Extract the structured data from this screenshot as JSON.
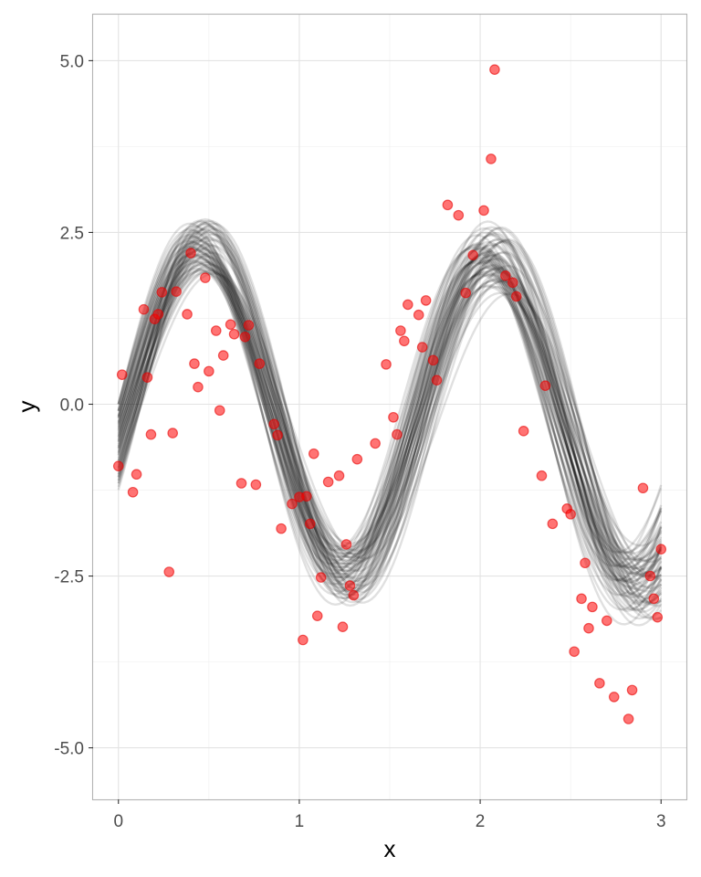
{
  "chart_data": {
    "type": "scatter",
    "title": "",
    "xlabel": "x",
    "ylabel": "y",
    "xlim": [
      -0.14,
      3.14
    ],
    "ylim": [
      -5.75,
      5.67
    ],
    "x_ticks": [
      0,
      1,
      2,
      3
    ],
    "x_tick_labels": [
      "0",
      "1",
      "2",
      "3"
    ],
    "y_ticks": [
      -5.0,
      -2.5,
      0.0,
      2.5,
      5.0
    ],
    "y_tick_labels": [
      "-5.0",
      "-2.5",
      "0.0",
      "2.5",
      "5.0"
    ],
    "grid": true,
    "legend": "none",
    "colors": {
      "points": "#ff0000",
      "lines": "#000000"
    },
    "series": [
      {
        "kind": "scatter",
        "x": [
          0.0,
          0.02,
          0.08,
          0.1,
          0.14,
          0.16,
          0.18,
          0.2,
          0.22,
          0.24,
          0.28,
          0.3,
          0.32,
          0.38,
          0.4,
          0.42,
          0.44,
          0.48,
          0.5,
          0.54,
          0.56,
          0.58,
          0.62,
          0.64,
          0.68,
          0.7,
          0.72,
          0.76,
          0.78,
          0.86,
          0.88,
          0.9,
          0.96,
          1.0,
          1.02,
          1.04,
          1.06,
          1.08,
          1.1,
          1.12,
          1.16,
          1.22,
          1.24,
          1.26,
          1.28,
          1.3,
          1.32,
          1.42,
          1.48,
          1.52,
          1.54,
          1.56,
          1.58,
          1.6,
          1.66,
          1.68,
          1.7,
          1.74,
          1.76,
          1.82,
          1.88,
          1.92,
          1.96,
          2.02,
          2.06,
          2.08,
          2.14,
          2.18,
          2.2,
          2.24,
          2.34,
          2.36,
          2.4,
          2.48,
          2.5,
          2.52,
          2.56,
          2.58,
          2.6,
          2.62,
          2.66,
          2.7,
          2.74,
          2.82,
          2.84,
          2.9,
          2.94,
          2.96,
          2.98,
          3.0
        ],
        "y": [
          -0.9,
          0.43,
          -1.28,
          -1.02,
          1.38,
          0.39,
          -0.44,
          1.24,
          1.31,
          1.63,
          -2.44,
          -0.42,
          1.64,
          1.31,
          2.2,
          0.59,
          0.25,
          1.84,
          0.48,
          1.07,
          -0.09,
          0.71,
          1.16,
          1.02,
          -1.15,
          0.98,
          1.15,
          -1.17,
          0.59,
          -0.29,
          -0.45,
          -1.81,
          -1.45,
          -1.35,
          -3.43,
          -1.34,
          -1.74,
          -0.72,
          -3.08,
          -2.52,
          -1.13,
          -1.04,
          -3.24,
          -2.04,
          -2.64,
          -2.78,
          -0.8,
          -0.57,
          0.58,
          -0.19,
          -0.44,
          1.07,
          0.92,
          1.45,
          1.3,
          0.83,
          1.51,
          0.64,
          0.35,
          2.9,
          2.75,
          1.62,
          2.17,
          2.82,
          3.57,
          4.87,
          1.87,
          1.77,
          1.57,
          -0.39,
          -1.04,
          0.27,
          -1.74,
          -1.52,
          -1.6,
          -3.6,
          -2.83,
          -2.31,
          -3.26,
          -2.95,
          -4.06,
          -3.15,
          -4.26,
          -4.58,
          -4.16,
          -1.22,
          -2.5,
          -2.83,
          -3.1,
          -2.11
        ]
      },
      {
        "kind": "fitted-curves",
        "model": "y = A*sin(w*x + p) + c*x",
        "count": 70,
        "x_range": [
          0,
          3
        ],
        "A": [
          2.0,
          2.1,
          2.2,
          2.3,
          2.4,
          2.5,
          2.6,
          2.7
        ],
        "w": [
          3.84,
          3.86,
          3.88,
          3.9,
          3.92,
          3.94,
          3.96,
          3.98,
          4.0,
          4.02
        ],
        "p": [
          -0.48,
          -0.44,
          -0.4,
          -0.36,
          -0.32,
          -0.28,
          -0.24,
          -0.2,
          -0.16,
          -0.12,
          -0.08,
          -0.04,
          0.0
        ],
        "c": [
          -0.18,
          -0.14,
          -0.1,
          -0.06,
          -0.02
        ]
      }
    ]
  }
}
